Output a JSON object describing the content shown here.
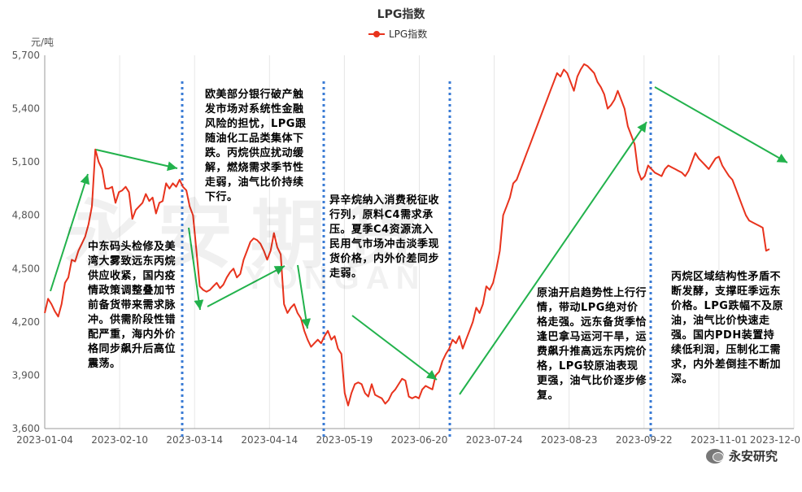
{
  "chart_data": {
    "type": "line",
    "title": "LPG指数",
    "ylabel": "元/吨",
    "ylim": [
      3600,
      5700
    ],
    "yticks": [
      "3,600",
      "3,900",
      "4,200",
      "4,500",
      "4,800",
      "5,100",
      "5,400",
      "5,700"
    ],
    "xticks": [
      "2023-01-04",
      "2023-02-10",
      "2023-03-14",
      "2023-04-14",
      "2023-05-19",
      "2023-06-20",
      "2023-07-24",
      "2023-08-23",
      "2023-09-22",
      "2023-11-01",
      "2023-12-0"
    ],
    "grid": "vertical",
    "legend_position": "top-center",
    "series": [
      {
        "name": "LPG指数",
        "color": "#e8331d",
        "values": [
          4250,
          4330,
          4300,
          4260,
          4230,
          4300,
          4420,
          4450,
          4550,
          4540,
          4600,
          4640,
          4680,
          4750,
          4850,
          5170,
          5100,
          5060,
          4950,
          4950,
          4960,
          4870,
          4930,
          4940,
          4960,
          4930,
          4780,
          4830,
          4850,
          4870,
          4920,
          4880,
          4900,
          4810,
          4870,
          4880,
          4980,
          4950,
          4980,
          4960,
          5000,
          4960,
          4940,
          4850,
          4800,
          4600,
          4400,
          4380,
          4370,
          4380,
          4400,
          4420,
          4390,
          4410,
          4450,
          4480,
          4500,
          4450,
          4470,
          4550,
          4600,
          4650,
          4670,
          4660,
          4640,
          4600,
          4550,
          4600,
          4700,
          4620,
          4580,
          4300,
          4250,
          4280,
          4300,
          4250,
          4220,
          4150,
          4100,
          4060,
          4080,
          4100,
          4080,
          4120,
          4150,
          4100,
          4120,
          4050,
          4020,
          3800,
          3730,
          3800,
          3850,
          3860,
          3850,
          3800,
          3780,
          3850,
          3790,
          3780,
          3770,
          3740,
          3760,
          3800,
          3820,
          3850,
          3880,
          3870,
          3780,
          3770,
          3780,
          3770,
          3820,
          3840,
          3830,
          3820,
          3900,
          3920,
          3980,
          4020,
          4050,
          4100,
          4080,
          4120,
          4050,
          4100,
          4150,
          4200,
          4280,
          4250,
          4300,
          4400,
          4380,
          4420,
          4500,
          4600,
          4800,
          4850,
          4900,
          4980,
          5000,
          5050,
          5100,
          5150,
          5200,
          5250,
          5300,
          5350,
          5400,
          5450,
          5500,
          5550,
          5600,
          5580,
          5620,
          5600,
          5550,
          5500,
          5580,
          5620,
          5650,
          5640,
          5620,
          5600,
          5550,
          5520,
          5480,
          5400,
          5420,
          5450,
          5500,
          5450,
          5400,
          5300,
          5250,
          5200,
          5050,
          5000,
          5020,
          5080,
          5060,
          5040,
          5030,
          5020,
          5060,
          5080,
          5070,
          5060,
          5050,
          5040,
          5020,
          5050,
          5100,
          5150,
          5120,
          5100,
          5080,
          5060,
          5090,
          5120,
          5130,
          5080,
          5050,
          5020,
          5000,
          4950,
          4900,
          4850,
          4800,
          4770,
          4760,
          4750,
          4740,
          4730,
          4600,
          4610
        ]
      }
    ]
  },
  "annotations": [
    "中东码头检修及美湾大雾致远东丙烷供应收紧，国内疫情政策调整叠加节前备货带来需求脉冲。供需阶段性错配严重，海内外价格同步飙升后高位震荡。",
    "欧美部分银行破产触发市场对系统性金融风险的担忧，LPG跟随油化工品类集体下跌。丙烷供应扰动缓解，燃烧需求季节性走弱，油气比价持续下行。",
    "异辛烷纳入消费税征收行列，原料C4需求承压。夏季C4资源流入民用气市场冲击淡季现货价格，内外价差同步走弱。",
    "原油开启趋势性上行行情，带动LPG绝对价格走强。远东备货季恰逢巴拿马运河干旱，运费飙升推高远东丙烷价格，LPG较原油表现更强，油气比价逐步修复。",
    "丙烷区域结构性矛盾不断发酵，支撑旺季远东价格。LPG跌幅不及原油，油气比价快速走强。国内PDH装置持续低利润，压制化工需求，内外差倒挂不断加深。"
  ],
  "watermark": "永安期货",
  "watermark_en": "YONGAN",
  "brand": "永安研究",
  "brand_icon": "wechat-icon"
}
